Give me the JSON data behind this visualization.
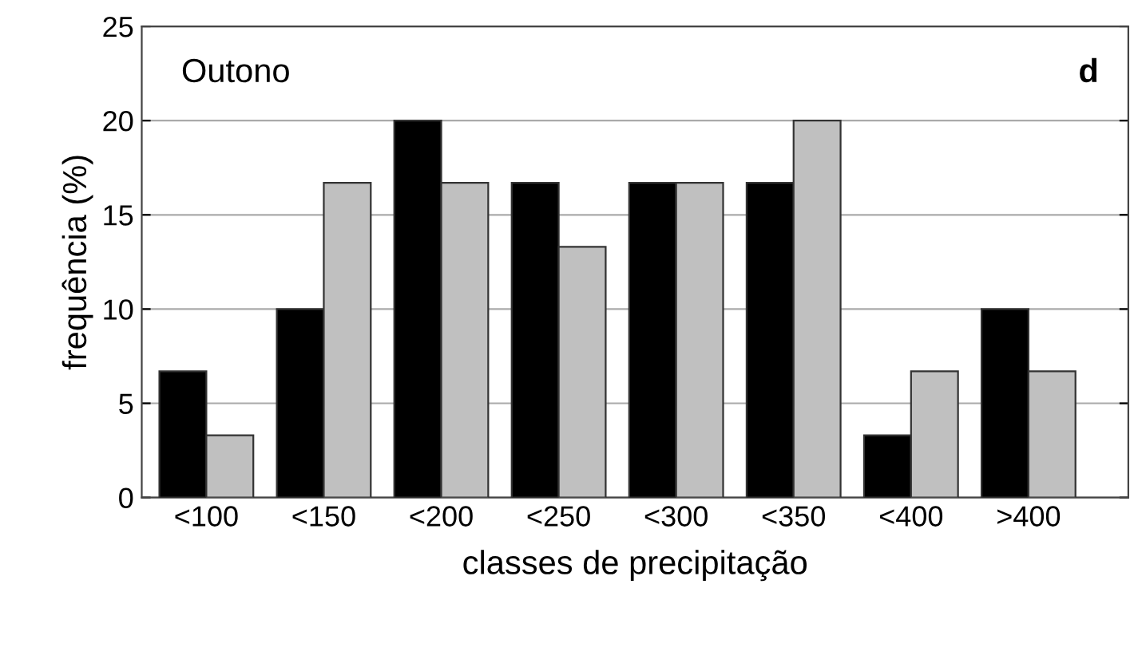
{
  "chart_data": {
    "type": "bar",
    "xlabel": "classes de precipitação",
    "ylabel": "frequência (%)",
    "categories": [
      "<100",
      "<150",
      "<200",
      "<250",
      "<300",
      "<350",
      "<400",
      ">400"
    ],
    "series": [
      {
        "color": "#000000",
        "values": [
          6.7,
          10,
          20,
          16.7,
          16.7,
          16.7,
          3.3,
          10
        ]
      },
      {
        "color": "#c0c0c0",
        "values": [
          3.3,
          16.7,
          16.7,
          13.3,
          16.7,
          20,
          6.7,
          6.7
        ]
      }
    ],
    "ylim": [
      0,
      25
    ],
    "yticks": [
      0,
      5,
      10,
      15,
      20,
      25
    ],
    "grid": "y",
    "annotations": [
      "Outono",
      "d"
    ]
  }
}
